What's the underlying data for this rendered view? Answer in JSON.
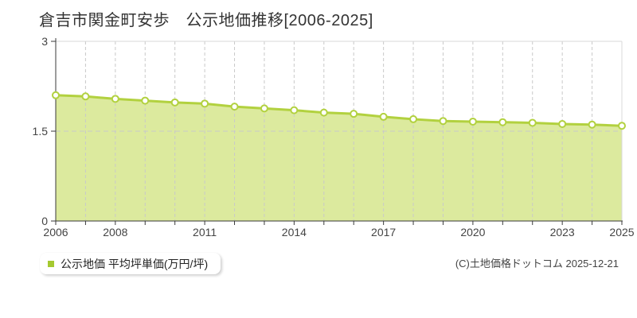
{
  "title": "倉吉市関金町安歩　公示地価推移[2006-2025]",
  "legend": {
    "label": "公示地価 平均坪単価(万円/坪)",
    "marker_color": "#a5c930"
  },
  "copyright": "(C)土地価格ドットコム 2025-12-21",
  "chart_data": {
    "type": "area",
    "title": "倉吉市関金町安歩 公示地価推移[2006-2025]",
    "series_name": "公示地価 平均坪単価(万円/坪)",
    "xlabel": "",
    "ylabel": "平均坪単価(万円/坪)",
    "x": [
      2006,
      2007,
      2008,
      2009,
      2010,
      2011,
      2012,
      2013,
      2014,
      2015,
      2016,
      2017,
      2018,
      2019,
      2020,
      2021,
      2022,
      2023,
      2024,
      2025
    ],
    "values": [
      2.1,
      2.08,
      2.04,
      2.01,
      1.98,
      1.96,
      1.91,
      1.88,
      1.85,
      1.81,
      1.79,
      1.74,
      1.7,
      1.67,
      1.66,
      1.65,
      1.64,
      1.62,
      1.61,
      1.59
    ],
    "ylim": [
      0,
      3
    ],
    "y_ticks": [
      3,
      1.5,
      0
    ],
    "y_tick_labels": [
      "3",
      "1.5",
      "0"
    ],
    "x_tick_years": [
      2006,
      2008,
      2011,
      2014,
      2017,
      2020,
      2023,
      2025
    ],
    "grid_y": [
      1.5
    ],
    "grid": "vertical dashed line at every year; horizontal dashed line at 1.5",
    "legend_position": "bottom-left",
    "marker": "hollow-circle",
    "colors": {
      "line": "#b2d13f",
      "fill": "#dcea9e",
      "marker_fill": "#ffffff",
      "grid": "#c9c9c9",
      "frame": "#d8d8d8",
      "axis": "#3a3a3a",
      "text": "#444444"
    }
  }
}
